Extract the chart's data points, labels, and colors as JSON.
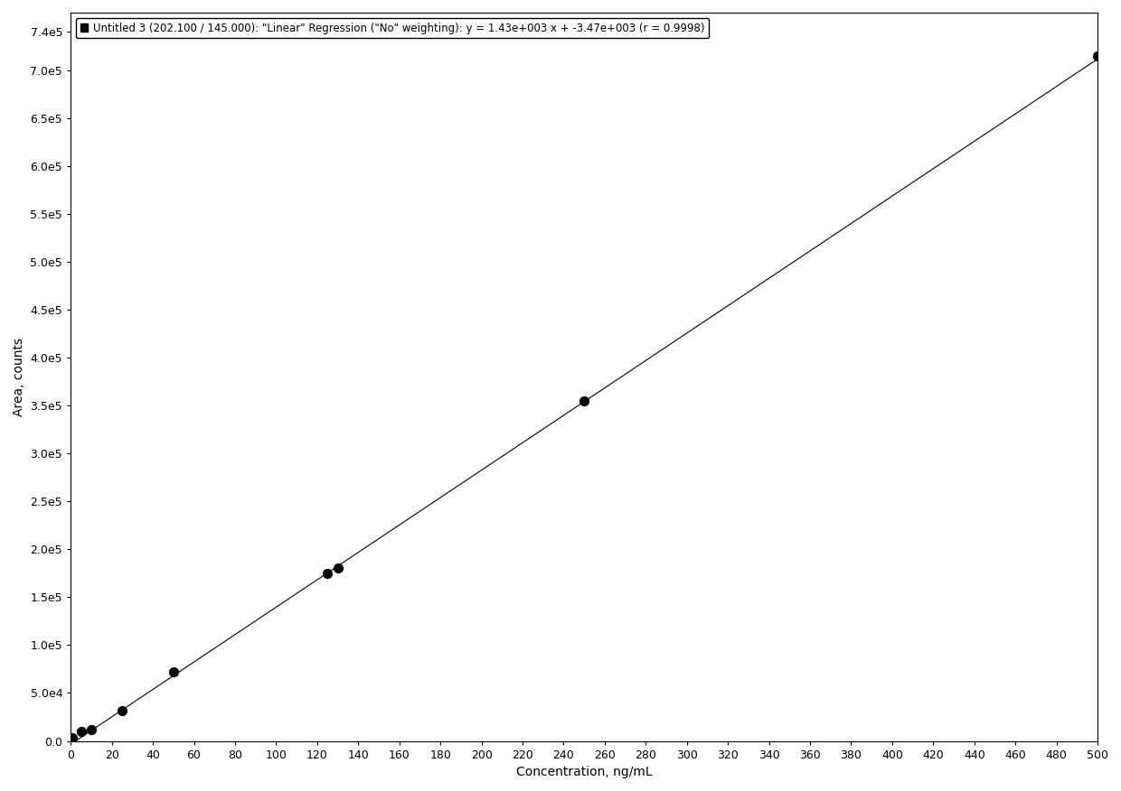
{
  "x_data": [
    1,
    5,
    10,
    25,
    50,
    125,
    130,
    250,
    500
  ],
  "y_data": [
    3000,
    10000,
    12000,
    32000,
    72000,
    175000,
    180000,
    355000,
    715000
  ],
  "slope": 1430.0,
  "intercept": -3470.0,
  "r_value": 0.9998,
  "x_label": "Concentration, ng/mL",
  "y_label": "Area, counts",
  "legend_text": "Untitled 3 (202.100 / 145.000): \"Linear\" Regression (\"No\" weighting): y = 1.43e+003 x + -3.47e+003 (r = 0.9998)",
  "x_min": 0,
  "x_max": 500,
  "x_ticks": [
    0,
    20,
    40,
    60,
    80,
    100,
    120,
    140,
    160,
    180,
    200,
    220,
    240,
    260,
    280,
    300,
    320,
    340,
    360,
    380,
    400,
    420,
    440,
    460,
    480,
    500
  ],
  "x_tick_labels": [
    "0",
    "20",
    "40",
    "60",
    "80",
    "100",
    "120",
    "140",
    "160",
    "180",
    "200",
    "220",
    "240",
    "260",
    "280",
    "300",
    "320",
    "340",
    "360",
    "380",
    "400",
    "420",
    "440",
    "460",
    "480",
    "500"
  ],
  "y_min": 0,
  "y_max": 760000,
  "y_ticks": [
    0,
    50000,
    100000,
    150000,
    200000,
    250000,
    300000,
    350000,
    400000,
    450000,
    500000,
    550000,
    600000,
    650000,
    700000,
    740000
  ],
  "y_tick_labels": [
    "0.0",
    "5.0e4",
    "1.0e5",
    "1.5e5",
    "2.0e5",
    "2.5e5",
    "3.0e5",
    "3.5e5",
    "4.0e5",
    "4.5e5",
    "5.0e5",
    "5.5e5",
    "6.0e5",
    "6.5e5",
    "7.0e5",
    "7.4e5"
  ],
  "background_color": "#ffffff",
  "line_color": "#000000",
  "point_color": "#000000",
  "legend_marker_color": "#000000",
  "font_size_ticks": 9,
  "font_size_labels": 10,
  "font_size_legend": 8.5
}
